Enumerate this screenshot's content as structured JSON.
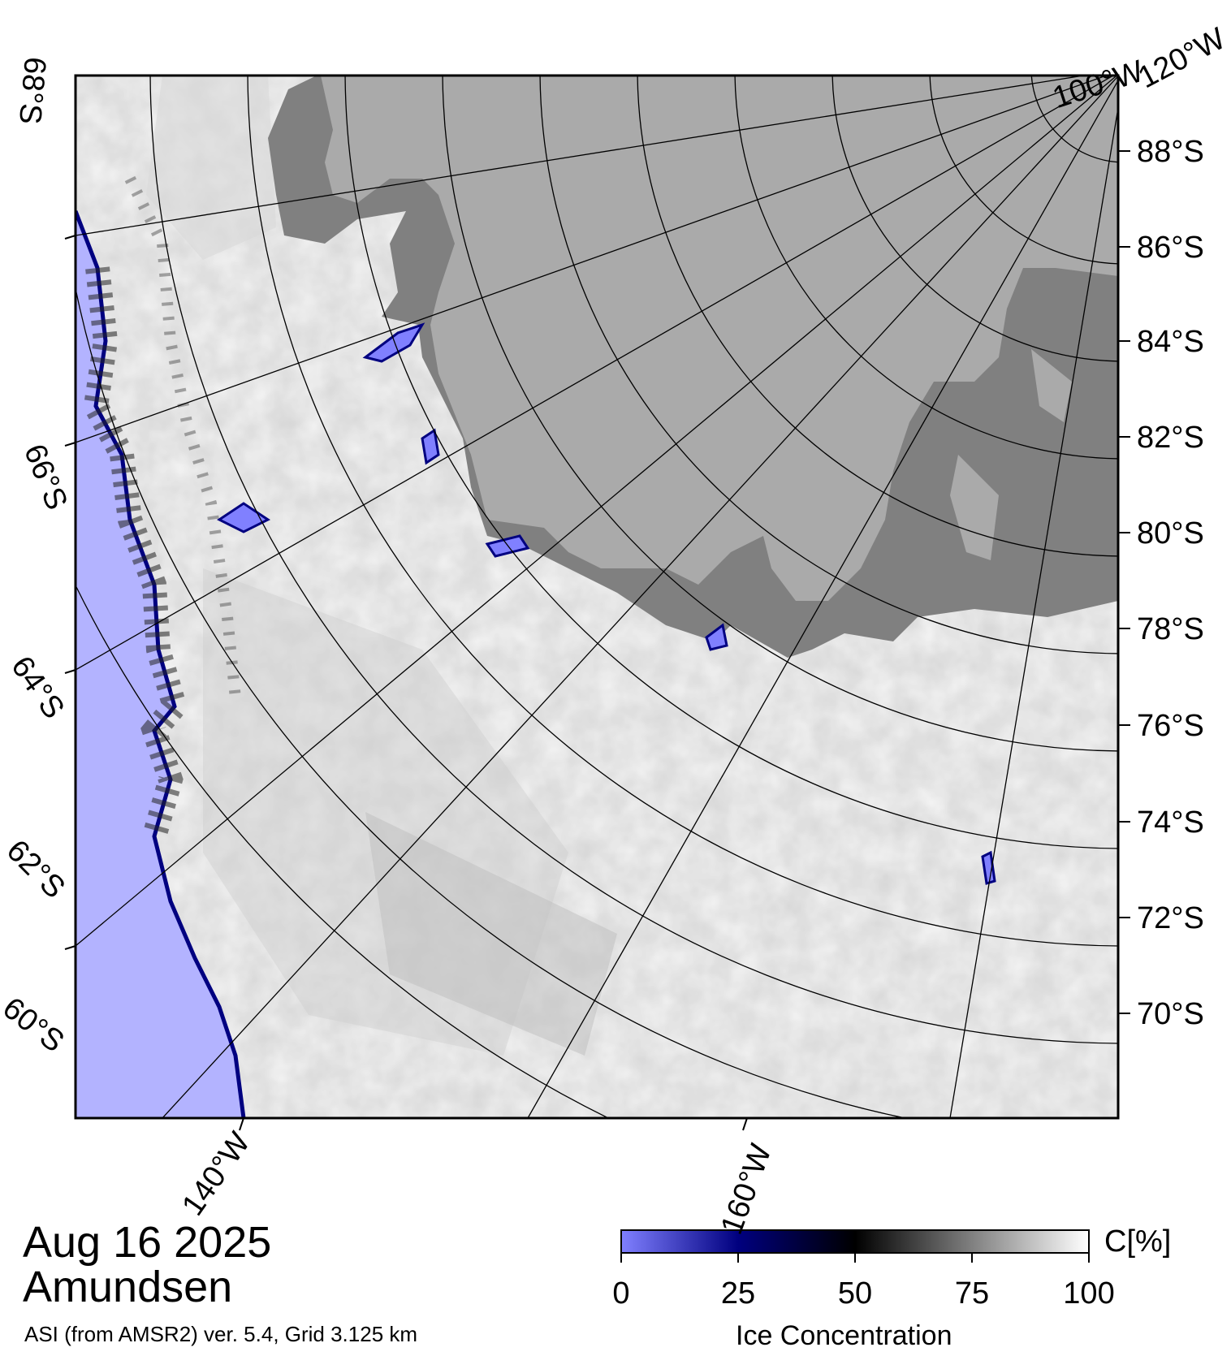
{
  "title": {
    "date": "Aug 16 2025",
    "region": "Amundsen",
    "credit": "ASI (from AMSR2) ver. 5.4,  Grid 3.125 km"
  },
  "colorbar": {
    "title": "Ice Concentration",
    "unit": "C[%]",
    "ticks": [
      "0",
      "25",
      "50",
      "75",
      "100"
    ],
    "colors": [
      "#8080ff",
      "#00007f",
      "#000000",
      "#808080",
      "#ffffff"
    ]
  },
  "latitude_labels_right": [
    "88°S",
    "86°S",
    "84°S",
    "82°S",
    "80°S",
    "78°S",
    "76°S",
    "74°S",
    "72°S",
    "70°S"
  ],
  "latitude_labels_left": [
    "68°S",
    "66°S",
    "64°S",
    "62°S",
    "60°S"
  ],
  "longitude_labels": [
    "140°W",
    "160°W",
    "100°W",
    "120°W"
  ],
  "legend_colors": {
    "land": "#aaaaaa",
    "ice_shelf": "#808080",
    "open_water": "#b3b3ff",
    "ice_edge": "#0000a0",
    "high_concentration": "#ffffff"
  }
}
